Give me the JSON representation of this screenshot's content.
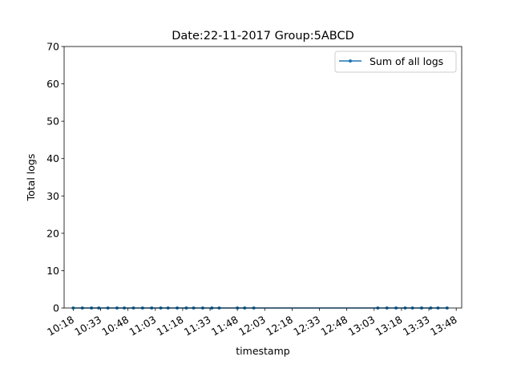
{
  "chart_data": {
    "type": "line",
    "title": "Date:22-11-2017  Group:5ABCD",
    "xlabel": "timestamp",
    "ylabel": "Total logs",
    "ylim": [
      0,
      70
    ],
    "yticks": [
      "0",
      "10",
      "20",
      "30",
      "40",
      "50",
      "60",
      "70"
    ],
    "xlim": [
      "10:13",
      "13:51"
    ],
    "xticks": [
      "10:18",
      "10:33",
      "10:48",
      "11:03",
      "11:18",
      "11:33",
      "11:48",
      "12:03",
      "12:18",
      "12:33",
      "12:48",
      "13:03",
      "13:18",
      "13:33",
      "13:48"
    ],
    "legend_position": "top-right",
    "grid": false,
    "series": [
      {
        "name": "Sum of all logs",
        "color": "#1f77b4",
        "x": [
          "10:18",
          "10:23",
          "10:28",
          "10:32",
          "10:37",
          "10:42",
          "10:46",
          "10:51",
          "10:56",
          "11:01",
          "11:06",
          "11:10",
          "11:15",
          "11:20",
          "11:24",
          "11:29",
          "11:34",
          "11:38",
          "11:48",
          "11:52",
          "11:57",
          "13:05",
          "13:10",
          "13:15",
          "13:20",
          "13:24",
          "13:29",
          "13:34",
          "13:38",
          "13:43"
        ],
        "y": [
          0,
          0,
          0,
          0,
          0,
          0,
          0,
          0,
          0,
          0,
          0,
          0,
          0,
          0,
          0,
          0,
          0,
          0,
          0,
          0,
          0,
          0,
          0,
          0,
          0,
          0,
          0,
          0,
          0,
          0
        ]
      }
    ]
  }
}
